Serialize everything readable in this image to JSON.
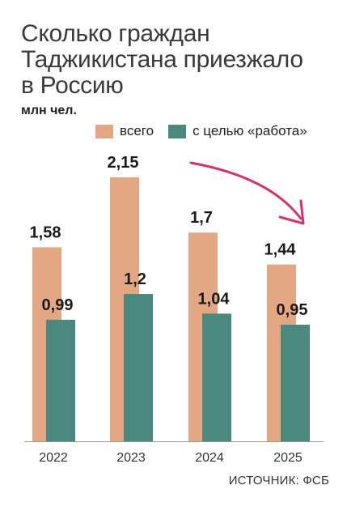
{
  "title_lines": [
    "Сколько граждан",
    "Таджикистана приезжало",
    "в Россию"
  ],
  "unit": "млн чел.",
  "source": "ИСТОЧНИК: ФСБ",
  "colors": {
    "total": "#e3a783",
    "work": "#4a8a7e",
    "arrow": "#d6336c"
  },
  "chart_data": {
    "type": "bar",
    "title": "Сколько граждан Таджикистана приезжало в Россию",
    "ylabel": "млн чел.",
    "categories": [
      "2022",
      "2023",
      "2024",
      "2025"
    ],
    "series": [
      {
        "name": "всего",
        "values": [
          1.58,
          2.15,
          1.7,
          1.44
        ],
        "labels": [
          "1,58",
          "2,15",
          "1,7",
          "1,44"
        ]
      },
      {
        "name": "с целью «работа»",
        "values": [
          0.99,
          1.2,
          1.04,
          0.95
        ],
        "labels": [
          "0,99",
          "1,2",
          "1,04",
          "0,95"
        ]
      }
    ],
    "ylim": [
      0,
      2.15
    ],
    "grid": false,
    "legend": "top"
  }
}
